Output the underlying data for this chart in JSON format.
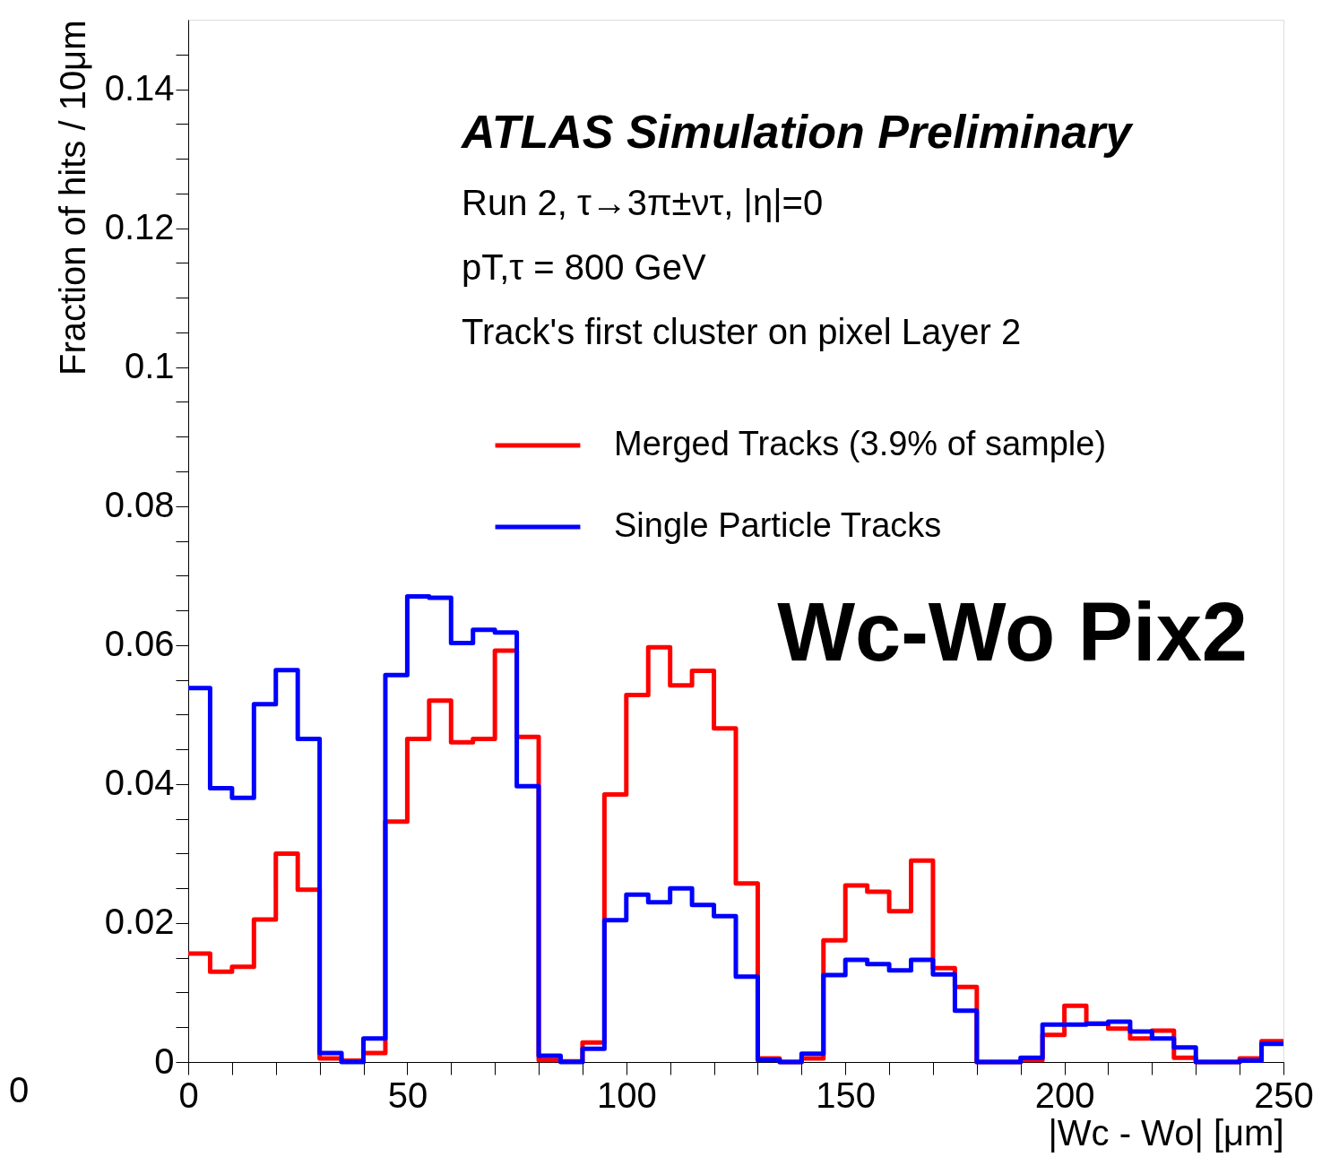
{
  "chart_data": {
    "type": "histogram",
    "title": "ATLAS Simulation Preliminary",
    "xlabel": "|Wc - Wo| [μm]",
    "ylabel": "Fraction of hits / 10μm",
    "annotations": [
      "Run 2, τ→3π±ντ, |η|=0",
      "pT,τ = 800 GeV",
      "Track's first cluster on pixel Layer 2",
      "Wc-Wo Pix2",
      "0"
    ],
    "bins": [
      0,
      5,
      10,
      15,
      20,
      25,
      30,
      35,
      40,
      45,
      50,
      55,
      60,
      65,
      70,
      75,
      80,
      85,
      90,
      95,
      100,
      105,
      110,
      115,
      120,
      125,
      130,
      135,
      140,
      145,
      150,
      155,
      160,
      165,
      170,
      175,
      180,
      185,
      190,
      195,
      200,
      205,
      210,
      215,
      220,
      225,
      230,
      235,
      240,
      245,
      250
    ],
    "series": [
      {
        "name": "Merged Tracks (3.9% of sample)",
        "color": "#ff0000",
        "values": [
          0.0156,
          0.013,
          0.0137,
          0.0205,
          0.03,
          0.0248,
          0.0005,
          0.0002,
          0.0013,
          0.0346,
          0.0465,
          0.052,
          0.046,
          0.0465,
          0.0592,
          0.0468,
          0.0003,
          0.0001,
          0.0028,
          0.0385,
          0.0528,
          0.0597,
          0.0542,
          0.0563,
          0.048,
          0.0257,
          0.0005,
          0.0,
          0.0005,
          0.0175,
          0.0254,
          0.0245,
          0.0217,
          0.029,
          0.0135,
          0.0108,
          0.0,
          0.0,
          0.0003,
          0.0039,
          0.0081,
          0.0055,
          0.0048,
          0.0034,
          0.0045,
          0.0006,
          0.0,
          0.0,
          0.0005,
          0.003
        ]
      },
      {
        "name": "Single Particle Tracks",
        "color": "#0000ff",
        "values": [
          0.0538,
          0.0394,
          0.038,
          0.0515,
          0.0564,
          0.0465,
          0.0013,
          0.0,
          0.0034,
          0.0557,
          0.067,
          0.0668,
          0.0603,
          0.0622,
          0.0618,
          0.0397,
          0.0009,
          0.0,
          0.0019,
          0.0204,
          0.0241,
          0.023,
          0.025,
          0.0226,
          0.021,
          0.0123,
          0.0003,
          0.0,
          0.0012,
          0.0125,
          0.0147,
          0.0141,
          0.0132,
          0.0147,
          0.0126,
          0.0074,
          0.0,
          0.0,
          0.0006,
          0.0054,
          0.0054,
          0.0055,
          0.0058,
          0.0044,
          0.0034,
          0.0021,
          0.0,
          0.0,
          0.0002,
          0.0026
        ]
      }
    ],
    "xlim": [
      0,
      250
    ],
    "ylim": [
      0,
      0.15
    ],
    "xticks": [
      0,
      {
        "value": 10,
        "label": null
      },
      {
        "value": 20,
        "label": null
      },
      {
        "value": 30,
        "label": null
      },
      {
        "value": 40,
        "label": null
      },
      50,
      {
        "value": 60,
        "label": null
      },
      {
        "value": 70,
        "label": null
      },
      {
        "value": 80,
        "label": null
      },
      {
        "value": 90,
        "label": null
      },
      100,
      {
        "value": 110,
        "label": null
      },
      {
        "value": 120,
        "label": null
      },
      {
        "value": 130,
        "label": null
      },
      {
        "value": 140,
        "label": null
      },
      150,
      {
        "value": 160,
        "label": null
      },
      {
        "value": 170,
        "label": null
      },
      {
        "value": 180,
        "label": null
      },
      {
        "value": 190,
        "label": null
      },
      200,
      {
        "value": 210,
        "label": null
      },
      {
        "value": 220,
        "label": null
      },
      {
        "value": 230,
        "label": null
      },
      {
        "value": 240,
        "label": null
      },
      250
    ],
    "yticks": [
      0,
      {
        "value": 0.005,
        "label": null
      },
      {
        "value": 0.01,
        "label": null
      },
      {
        "value": 0.015,
        "label": null
      },
      0.02,
      {
        "value": 0.025,
        "label": null
      },
      {
        "value": 0.03,
        "label": null
      },
      {
        "value": 0.035,
        "label": null
      },
      0.04,
      {
        "value": 0.045,
        "label": null
      },
      {
        "value": 0.05,
        "label": null
      },
      {
        "value": 0.055,
        "label": null
      },
      0.06,
      {
        "value": 0.065,
        "label": null
      },
      {
        "value": 0.07,
        "label": null
      },
      {
        "value": 0.075,
        "label": null
      },
      0.08,
      {
        "value": 0.085,
        "label": null
      },
      {
        "value": 0.09,
        "label": null
      },
      {
        "value": 0.095,
        "label": null
      },
      0.1,
      {
        "value": 0.105,
        "label": null
      },
      {
        "value": 0.11,
        "label": null
      },
      {
        "value": 0.115,
        "label": null
      },
      0.12,
      {
        "value": 0.125,
        "label": null
      },
      {
        "value": 0.13,
        "label": null
      },
      {
        "value": 0.135,
        "label": null
      },
      0.14,
      {
        "value": 0.145,
        "label": null
      }
    ],
    "grid": false,
    "legend": "top right",
    "line_style": "solid"
  }
}
